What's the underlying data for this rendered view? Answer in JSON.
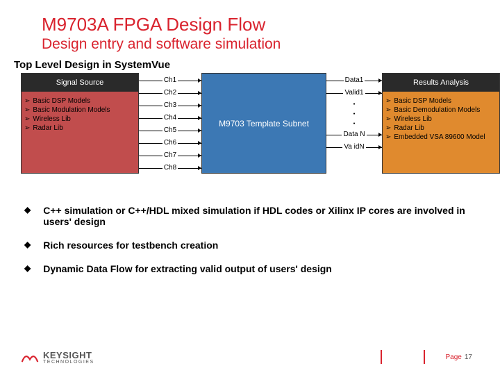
{
  "colors": {
    "title": "#d9232e",
    "subtitle": "#d9232e",
    "left_block": "#c14d4d",
    "left_hdr": "#2a2a2a",
    "mid_block": "#3c78b4",
    "right_block": "#e08a2e",
    "right_hdr": "#2a2a2a",
    "footer_accent": "#d9232e"
  },
  "title": "M9703A FPGA Design Flow",
  "subtitle": "Design entry and software simulation",
  "section": "Top Level Design in SystemVue",
  "left": {
    "header": "Signal Source",
    "items": [
      "Basic DSP Models",
      "Basic Modulation Models",
      "Wireless Lib",
      "Radar Lib"
    ]
  },
  "mid": {
    "label": "M9703 Template Subnet"
  },
  "right": {
    "header": "Results Analysis",
    "items": [
      "Basic DSP Models",
      "Basic Demodulation Models",
      "Wireless Lib",
      "Radar Lib",
      "Embedded VSA 89600 Model"
    ]
  },
  "channels": [
    "Ch1",
    "Ch2",
    "Ch3",
    "Ch4",
    "Ch5",
    "Ch6",
    "Ch7",
    "Ch8"
  ],
  "outputs_top": [
    "Data1",
    "Valid1"
  ],
  "outputs_bot": [
    "Data N",
    "Va idN"
  ],
  "bullets": [
    "C++ simulation or C++/HDL mixed simulation if HDL codes or Xilinx IP cores are involved in users' design",
    "Rich resources for testbench creation",
    "Dynamic Data Flow for extracting valid output of users' design"
  ],
  "footer": {
    "brand1": "KEYSIGHT",
    "brand2": "TECHNOLOGIES",
    "page_label": "Page",
    "page_num": "17"
  }
}
